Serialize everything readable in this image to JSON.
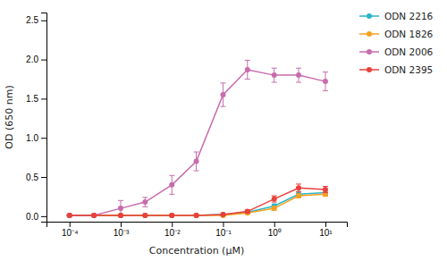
{
  "chart_data": {
    "type": "line",
    "xlabel": "Concentration (μM)",
    "ylabel": "OD (650 nm)",
    "log": "x",
    "grid": false,
    "legend": "right",
    "marker": "circle",
    "line_style": "solid",
    "x": [
      0.0001,
      0.0003,
      0.001,
      0.003,
      0.01,
      0.03,
      0.1,
      0.3,
      1.0,
      3.0,
      10.0
    ],
    "xlim": [
      3.548133892335755e-05,
      26.302679918953817
    ],
    "xticks": [
      {
        "value": 0.0001,
        "label": "10⁻⁴"
      },
      {
        "value": 0.001,
        "label": "10⁻³"
      },
      {
        "value": 0.01,
        "label": "10⁻²"
      },
      {
        "value": 0.1,
        "label": "10⁻¹"
      },
      {
        "value": 1,
        "label": "10⁰"
      },
      {
        "value": 10,
        "label": "10¹"
      }
    ],
    "ylim": [
      -0.07,
      2.6
    ],
    "yticks": [
      {
        "value": 0.0,
        "label": "0.0"
      },
      {
        "value": 0.5,
        "label": "0.5"
      },
      {
        "value": 1.0,
        "label": "1.0"
      },
      {
        "value": 1.5,
        "label": "1.5"
      },
      {
        "value": 2.0,
        "label": "2.0"
      },
      {
        "value": 2.5,
        "label": "2.5"
      }
    ],
    "series": [
      {
        "name": "ODN 2216",
        "color": "#2ab5c8",
        "values": [
          0.01,
          0.01,
          0.01,
          0.01,
          0.01,
          0.01,
          0.02,
          0.05,
          0.13,
          0.28,
          0.3
        ],
        "yerr": [
          0.005,
          0.005,
          0.005,
          0.005,
          0.005,
          0.005,
          0.008,
          0.015,
          0.025,
          0.035,
          0.035
        ]
      },
      {
        "name": "ODN 1826",
        "color": "#f5a020",
        "values": [
          0.01,
          0.01,
          0.01,
          0.01,
          0.01,
          0.01,
          0.01,
          0.04,
          0.1,
          0.26,
          0.28
        ],
        "yerr": [
          0.005,
          0.005,
          0.005,
          0.005,
          0.005,
          0.005,
          0.005,
          0.015,
          0.025,
          0.025,
          0.025
        ]
      },
      {
        "name": "ODN 2006",
        "color": "#c76cac",
        "values": [
          0.01,
          0.01,
          0.1,
          0.18,
          0.4,
          0.7,
          1.55,
          1.87,
          1.8,
          1.8,
          1.72
        ],
        "yerr": [
          0.005,
          0.01,
          0.1,
          0.06,
          0.12,
          0.12,
          0.15,
          0.12,
          0.09,
          0.09,
          0.12
        ]
      },
      {
        "name": "ODN 2395",
        "color": "#e8413b",
        "values": [
          0.01,
          0.01,
          0.01,
          0.01,
          0.01,
          0.01,
          0.02,
          0.06,
          0.22,
          0.36,
          0.34
        ],
        "yerr": [
          0.005,
          0.005,
          0.005,
          0.005,
          0.005,
          0.005,
          0.01,
          0.02,
          0.04,
          0.05,
          0.04
        ]
      }
    ]
  }
}
